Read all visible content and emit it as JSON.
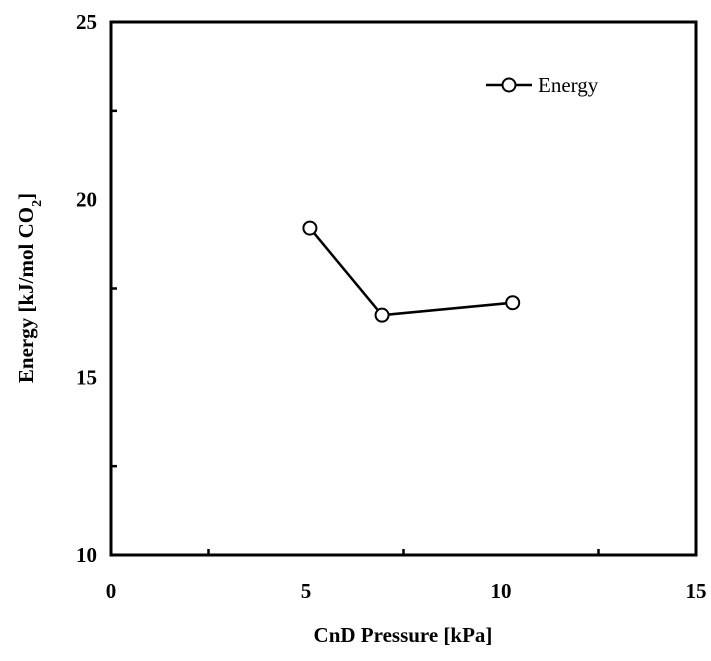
{
  "chart_data": {
    "type": "line",
    "title": "",
    "xlabel": "CnD Pressure [kPa]",
    "ylabel": "Energy [kJ/mol CO2]",
    "ylabel_parts": {
      "main": "Energy [kJ/mol CO",
      "subscript": "2",
      "end": "]"
    },
    "xlim": [
      0,
      15
    ],
    "ylim": [
      10,
      25
    ],
    "x_ticks": [
      0,
      5,
      10,
      15
    ],
    "x_tick_labels": [
      "0",
      "5",
      "10",
      "15"
    ],
    "x_minor_ticks": [
      2.5,
      7.5,
      12.5
    ],
    "y_ticks": [
      10,
      15,
      20,
      25
    ],
    "y_tick_labels": [
      "10",
      "15",
      "20",
      "25"
    ],
    "y_minor_ticks": [
      12.5,
      17.5,
      22.5
    ],
    "grid": false,
    "legend_position": "top-right",
    "series": [
      {
        "name": "Energy",
        "marker": "open-circle",
        "color": "#000000",
        "x": [
          5.1,
          6.95,
          10.3
        ],
        "y": [
          19.2,
          16.75,
          17.1
        ]
      }
    ]
  }
}
